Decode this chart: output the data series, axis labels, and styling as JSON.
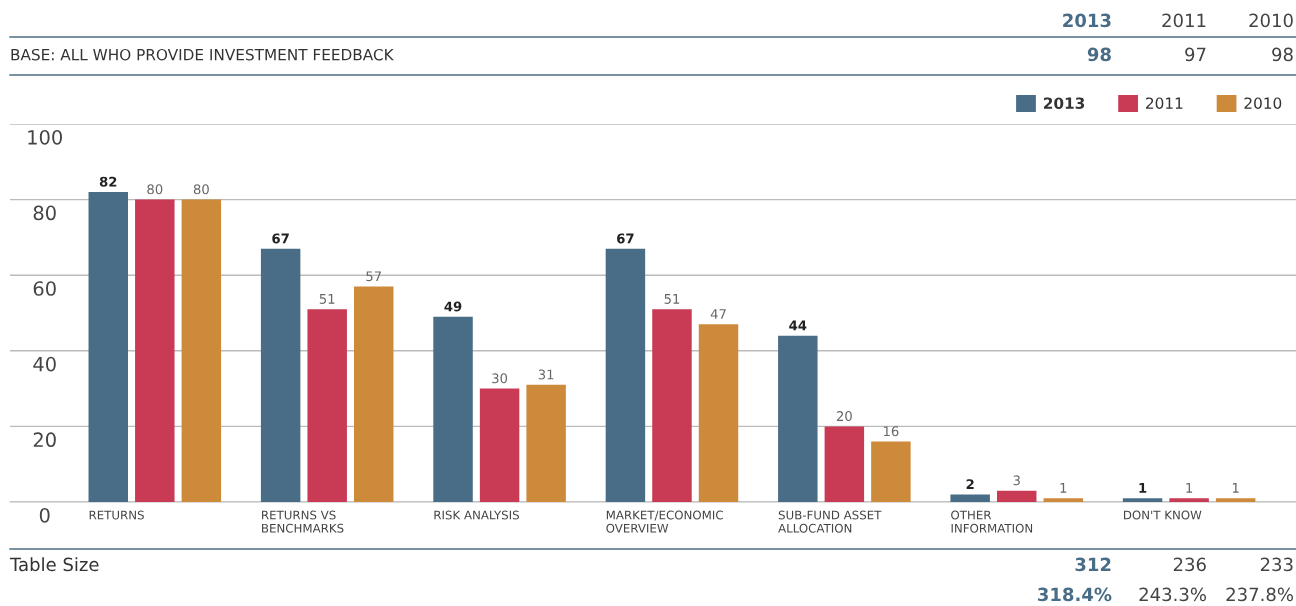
{
  "chart_data": {
    "type": "bar",
    "categories": [
      "RETURNS",
      "RETURNS VS\nBENCHMARKS",
      "RISK ANALYSIS",
      "MARKET/ECONOMIC\nOVERVIEW",
      "SUB-FUND ASSET\nALLOCATION",
      "OTHER\nINFORMATION",
      "DON'T KNOW"
    ],
    "series": [
      {
        "name": "2013",
        "color": "#4a6d87",
        "values": [
          82,
          67,
          49,
          67,
          44,
          2,
          1
        ]
      },
      {
        "name": "2011",
        "color": "#c93a55",
        "values": [
          80,
          51,
          30,
          51,
          20,
          3,
          1
        ]
      },
      {
        "name": "2010",
        "color": "#cc8a3a",
        "values": [
          80,
          57,
          31,
          47,
          16,
          1,
          1
        ]
      }
    ],
    "ylim": [
      0,
      100
    ],
    "yticks": [
      0,
      20,
      40,
      60,
      80,
      100
    ],
    "grid": "y",
    "legend": "top right",
    "data_labels": true,
    "annotations": [
      "2013",
      "2011",
      "2010",
      "BASE: ALL WHO PROVIDE INVESTMENT FEEDBACK",
      "98",
      "97",
      "98",
      "Table Size",
      "312",
      "236",
      "233",
      "318.4%",
      "243.3%",
      "237.8%"
    ]
  }
}
